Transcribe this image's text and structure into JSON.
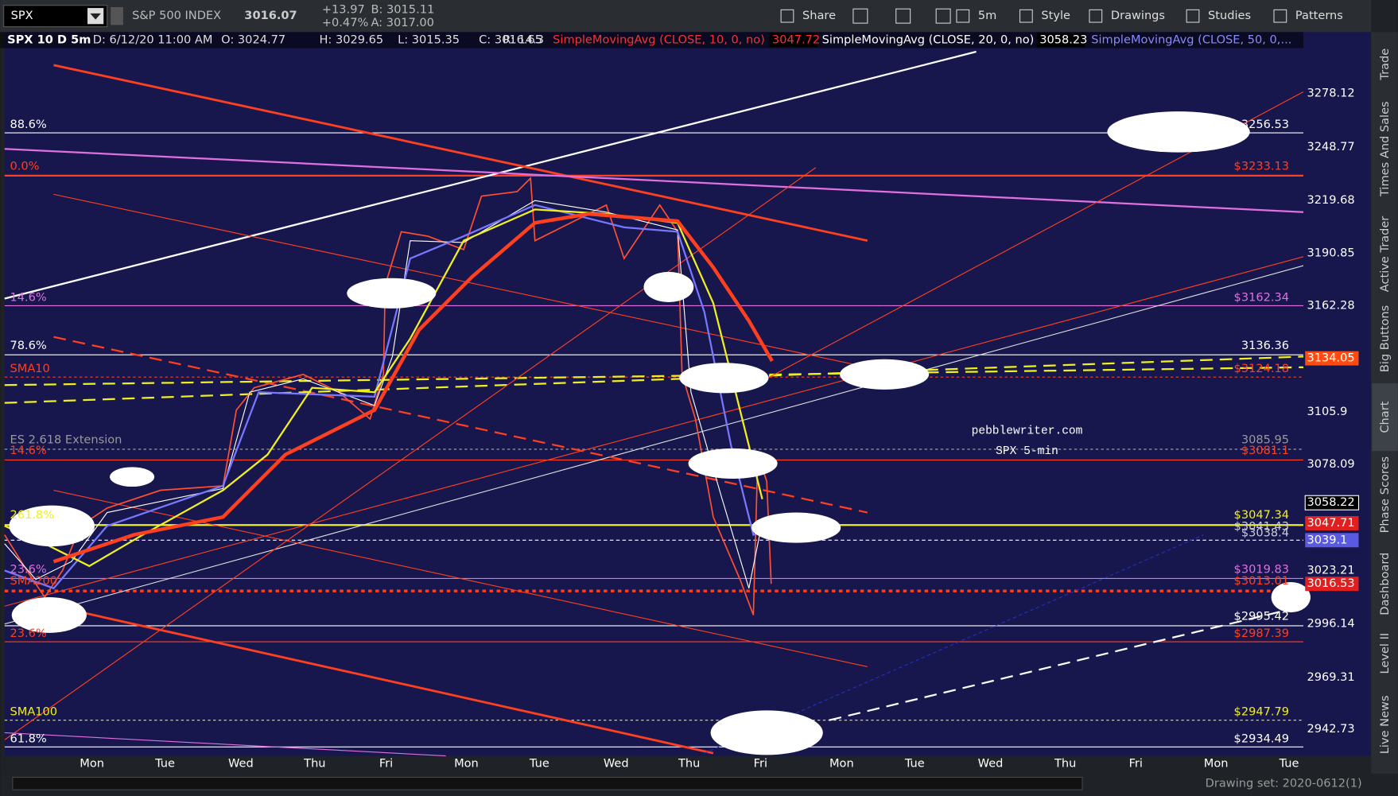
{
  "toolbar": {
    "symbol": "SPX",
    "name": "S&P 500 INDEX",
    "price": "3016.07",
    "change": "+13.97",
    "change_pct": "+0.47%",
    "bid": "B: 3015.11",
    "ask": "A: 3017.00",
    "buttons": [
      "Share",
      "5m",
      "Style",
      "Drawings",
      "Studies",
      "Patterns"
    ]
  },
  "info_bar": [
    "SPX 10 D 5m",
    "D: 6/12/20 11:00 AM",
    "O: 3024.77",
    "H: 3029.65",
    "L: 3015.35",
    "C: 3016.65",
    "R: 14.3"
  ],
  "studies": [
    {
      "name": "SimpleMovingAvg (CLOSE, 10, 0, no)",
      "value": "3047.72"
    },
    {
      "name": "SimpleMovingAvg (CLOSE, 20, 0, no)",
      "value": "3058.23"
    },
    {
      "name": "SimpleMovingAvg (CLOSE, 50, 0,..."
    }
  ],
  "price_axis": [
    "3278.12",
    "3248.77",
    "3219.68",
    "3190.85",
    "3162.28",
    "3134.05",
    "3105.9",
    "3078.09",
    "3058.22",
    "3047.71",
    "3039.1",
    "3023.21",
    "3016.53",
    "2996.14",
    "2969.31",
    "2942.73"
  ],
  "time_axis": [
    "Mon",
    "Tue",
    "Wed",
    "Thu",
    "Fri",
    "Mon",
    "Tue",
    "Wed",
    "Thu",
    "Fri",
    "Mon",
    "Tue",
    "Wed",
    "Thu",
    "Fri",
    "Mon",
    "Tue"
  ],
  "left_labels": [
    "88.6%",
    "0.0%",
    "14.6%",
    "78.6%",
    "SMA10",
    "ES 2.618 Extension",
    "14.6%",
    "261.8%",
    "23.6%",
    "SMA200",
    "23.6%",
    "SMA100",
    "61.8%"
  ],
  "right_labels": [
    "3256.53",
    "$3233.13",
    "$3162.34",
    "3136.36",
    "$3124.18",
    "3085.95",
    "$3081.1",
    "$3047.34",
    "$3041.43",
    "$3038.4",
    "$3019.83",
    "$3013.01",
    "$2995.42",
    "$2987.39",
    "$2947.79",
    "$2934.49"
  ],
  "watermark": [
    "pebblewriter.com",
    "SPX 5-min"
  ],
  "side_tabs": [
    "Trade",
    "Times And Sales",
    "Active Trader",
    "Big Buttons",
    "Chart",
    "Phase Scores",
    "Dashboard",
    "Level II",
    "Live News"
  ],
  "status": "Drawing set: 2020-0612(1)"
}
